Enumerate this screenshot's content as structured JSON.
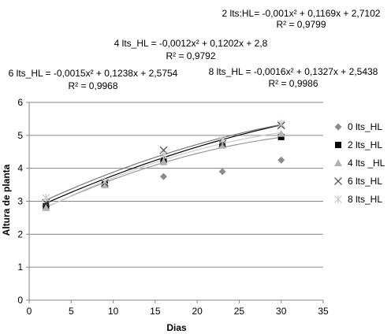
{
  "chart_data": {
    "type": "scatter",
    "title": "",
    "xlabel": "Dias",
    "ylabel": "Altura de planta",
    "xlim": [
      0,
      35
    ],
    "ylim": [
      0,
      6
    ],
    "xticks": [
      0,
      5,
      10,
      15,
      20,
      25,
      30,
      35
    ],
    "yticks": [
      0,
      1,
      2,
      3,
      4,
      5,
      6
    ],
    "grid": "horizontal",
    "legend_position": "right",
    "x": [
      2,
      9,
      16,
      23,
      30
    ],
    "series": [
      {
        "name": "0 lts_HL",
        "marker": "diamond",
        "color": "#8c8c8c",
        "values": [
          2.85,
          3.5,
          3.75,
          3.9,
          4.25
        ],
        "trendline": null,
        "equation": "",
        "r2": ""
      },
      {
        "name": "2 lts_HL",
        "marker": "square",
        "color": "#000000",
        "values": [
          2.85,
          3.5,
          4.2,
          4.7,
          4.95
        ],
        "trendline": {
          "type": "poly2",
          "a": -0.001,
          "b": 0.1169,
          "c": 2.7102,
          "color": "#000000"
        },
        "equation": "2 lts:HL= -0,001x² + 0,1169x + 2,7102",
        "r2": "R² = 0,9799"
      },
      {
        "name": "4 lts _HL",
        "marker": "triangle",
        "color": "#b3b3b3",
        "values": [
          2.8,
          3.5,
          4.2,
          4.7,
          5.05
        ],
        "trendline": {
          "type": "poly2",
          "a": -0.0012,
          "b": 0.1202,
          "c": 2.8,
          "color": "#777777"
        },
        "equation": "4 lts_HL = -0,0012x² + 0,1202x + 2,8",
        "r2": "R² = 0,9792"
      },
      {
        "name": "6 lts_HL",
        "marker": "x",
        "color": "#444444",
        "values": [
          2.95,
          3.55,
          4.55,
          4.75,
          5.3
        ],
        "trendline": {
          "type": "poly2",
          "a": -0.0015,
          "b": 0.1238,
          "c": 2.5754,
          "color": "#999999"
        },
        "equation": "6 lts_HL = -0,0015x² + 0,1238x + 2,5754",
        "r2": "R² = 0,9968"
      },
      {
        "name": "8 lts_HL",
        "marker": "asterisk",
        "color": "#c8c8c8",
        "values": [
          3.1,
          3.6,
          4.4,
          4.85,
          5.35
        ],
        "trendline": {
          "type": "poly2",
          "a": -0.0016,
          "b": 0.1327,
          "c": 2.5438,
          "color": "#cccccc"
        },
        "equation": "8 lts_HL = -0,0016x² + 0,1327x + 2,5438",
        "r2": "R² = 0,9986"
      }
    ]
  }
}
